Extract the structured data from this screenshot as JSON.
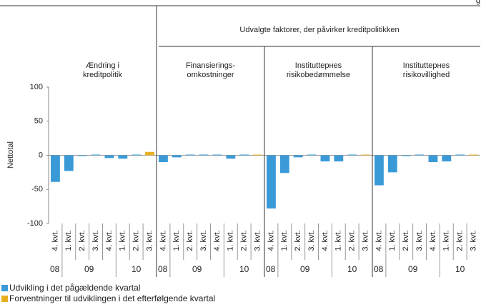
{
  "header_fragment": "g",
  "group_header": "Udvalgte faktorer, der påvirker kreditpolitikken",
  "chart_data": [
    {
      "type": "bar",
      "title": [
        "Ændring i",
        "kreditpolitik"
      ],
      "ylabel": "Nettotal",
      "ylim": [
        -100,
        100
      ],
      "yticks": [
        -100,
        -50,
        0,
        50,
        100
      ],
      "categories": [
        "4. kvt.",
        "1. kvt.",
        "2. kvt.",
        "3. kvt.",
        "4. kvt.",
        "1. kvt.",
        "2. kvt.",
        "3. kvt."
      ],
      "year_labels": [
        "08",
        "09",
        "10"
      ],
      "series": [
        {
          "name": "Udvikling i det pågældende kvartal",
          "color": "#3a9ad8",
          "values": [
            -39,
            -23,
            -1,
            0,
            -4,
            -5,
            0,
            null
          ]
        },
        {
          "name": "Forventninger til udviklingen i det efterfølgende kvartal",
          "color": "#e6b022",
          "values": [
            null,
            null,
            null,
            null,
            null,
            null,
            null,
            5
          ]
        }
      ]
    },
    {
      "type": "bar",
      "title": [
        "Finansierings-",
        "omkostninger"
      ],
      "categories": [
        "4. kvt.",
        "1. kvt.",
        "2. kvt.",
        "3. kvt.",
        "4. kvt.",
        "1. kvt.",
        "2. kvt.",
        "3. kvt."
      ],
      "year_labels": [
        "08",
        "09",
        "10"
      ],
      "series": [
        {
          "color": "#3a9ad8",
          "values": [
            -10,
            -3,
            1,
            1,
            0,
            -5,
            0,
            null
          ]
        },
        {
          "color": "#e6b022",
          "values": [
            null,
            null,
            null,
            null,
            null,
            null,
            null,
            0
          ]
        }
      ]
    },
    {
      "type": "bar",
      "title": [
        "Instituttернes",
        "risikobedømmelse"
      ],
      "categories": [
        "4. kvt.",
        "1. kvt.",
        "2. kvt.",
        "3. kvt.",
        "4. kvt.",
        "1. kvt.",
        "2. kvt.",
        "3. kvt."
      ],
      "year_labels": [
        "08",
        "09",
        "10"
      ],
      "series": [
        {
          "color": "#3a9ad8",
          "values": [
            -78,
            -26,
            -3,
            0,
            -9,
            -9,
            0,
            null
          ]
        },
        {
          "color": "#e6b022",
          "values": [
            null,
            null,
            null,
            null,
            null,
            null,
            null,
            0
          ]
        }
      ]
    },
    {
      "type": "bar",
      "title": [
        "Instituttернes",
        "risikovillighed"
      ],
      "categories": [
        "4. kvt.",
        "1. kvt.",
        "2. kvt.",
        "3. kvt.",
        "4. kvt.",
        "1. kvt.",
        "2. kvt.",
        "3. kvt."
      ],
      "year_labels": [
        "08",
        "09",
        "10"
      ],
      "series": [
        {
          "color": "#3a9ad8",
          "values": [
            -44,
            -25,
            -1,
            0,
            -10,
            -9,
            0,
            null
          ]
        },
        {
          "color": "#e6b022",
          "values": [
            null,
            null,
            null,
            null,
            null,
            null,
            null,
            0
          ]
        }
      ]
    }
  ]
}
